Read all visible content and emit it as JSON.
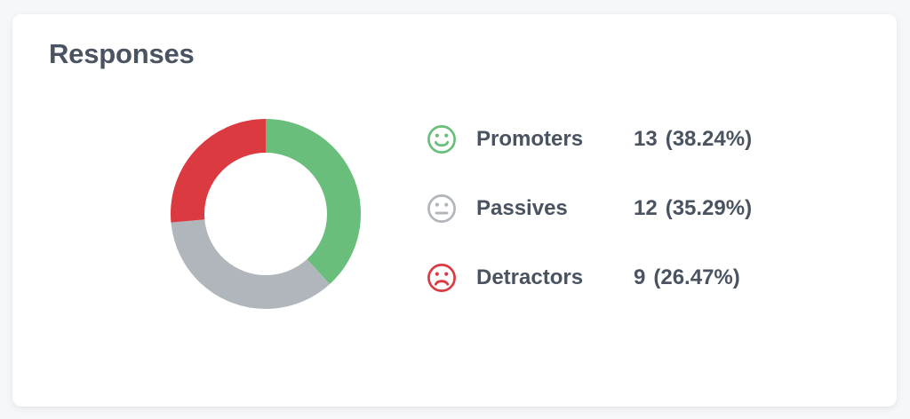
{
  "card": {
    "title": "Responses"
  },
  "colors": {
    "promoters": "#6abe7b",
    "passives": "#b1b5bc",
    "detractors": "#db3a41",
    "text": "#4a5361",
    "card_bg": "#ffffff",
    "page_bg": "#f6f7f8"
  },
  "chart_data": {
    "type": "pie",
    "style": "donut",
    "title": "Responses",
    "start_angle_deg": 0,
    "direction": "clockwise",
    "legend_position": "right",
    "series": [
      {
        "label": "Promoters",
        "value": 13,
        "pct": 38.24,
        "color": "#6abe7b"
      },
      {
        "label": "Passives",
        "value": 12,
        "pct": 35.29,
        "color": "#b1b5bc"
      },
      {
        "label": "Detractors",
        "value": 9,
        "pct": 26.47,
        "color": "#db3a41"
      }
    ]
  },
  "legend": {
    "rows": [
      {
        "icon": "happy-face-icon",
        "label": "Promoters",
        "value": "13",
        "pct": "(38.24%)",
        "color": "#6abe7b"
      },
      {
        "icon": "neutral-face-icon",
        "label": "Passives",
        "value": "12",
        "pct": "(35.29%)",
        "color": "#b1b5bc"
      },
      {
        "icon": "sad-face-icon",
        "label": "Detractors",
        "value": "9",
        "pct": "(26.47%)",
        "color": "#db3a41"
      }
    ]
  }
}
